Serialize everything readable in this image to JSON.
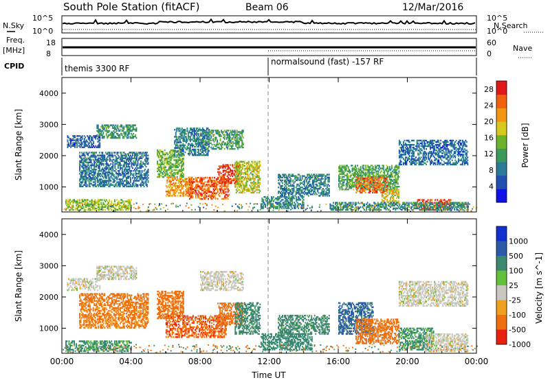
{
  "header": {
    "title": "South Pole Station (fitACF)",
    "beam": "Beam 06",
    "date": "12/Mar/2016"
  },
  "top_panels": {
    "nsky_label": "N.Sky",
    "nsearch_label": "N.Search",
    "noise_ticks": [
      "10^5",
      "10^0"
    ],
    "freq_label_1": "Freq.",
    "freq_label_2": "[MHz]",
    "freq_ticks": [
      "18",
      "8"
    ],
    "nave_label": "Nave",
    "nave_ticks": [
      "60",
      "0"
    ],
    "cpid_label": "CPID",
    "cpid_segments": [
      "themis 3300 RF",
      "normalsound (fast) -157 RF"
    ]
  },
  "colors": {
    "power_scale": [
      "#1010e8",
      "#2050b0",
      "#2a7a9a",
      "#3a9a5a",
      "#6cb22a",
      "#d6c81e",
      "#f49414",
      "#f06010",
      "#e01818"
    ],
    "velocity_scale": [
      "#1030d0",
      "#2a5aa8",
      "#3a8870",
      "#62c03a",
      "#c8c8c0",
      "#f0a020",
      "#f07010",
      "#e82010"
    ],
    "dash": "#888888"
  },
  "chart_data": [
    {
      "type": "heatmap",
      "parameter": "power",
      "ylabel": "Slant Range [km]",
      "xlabel": "Time UT",
      "x_ticks": [
        "00:00",
        "04:00",
        "08:00",
        "12:00",
        "16:00",
        "20:00",
        "00:00"
      ],
      "xlim_hours": [
        0,
        24
      ],
      "ylim": [
        200,
        4500
      ],
      "y_ticks": [
        1000,
        2000,
        3000,
        4000
      ],
      "colorbar": {
        "label": "Power [dB]",
        "ticks": [
          4,
          8,
          12,
          16,
          20,
          24,
          28
        ],
        "range": [
          0,
          30
        ]
      },
      "regions": [
        {
          "t": [
            0.3,
            2.2
          ],
          "r": [
            2250,
            2650
          ],
          "v": 6
        },
        {
          "t": [
            2.0,
            4.3
          ],
          "r": [
            2550,
            3000
          ],
          "v": 11
        },
        {
          "t": [
            0.2,
            4.0
          ],
          "r": [
            250,
            600
          ],
          "v": 16
        },
        {
          "t": [
            1.0,
            5.0
          ],
          "r": [
            1000,
            2100
          ],
          "v": 8
        },
        {
          "t": [
            5.5,
            7.0
          ],
          "r": [
            1300,
            2200
          ],
          "v": 14
        },
        {
          "t": [
            6.0,
            7.5
          ],
          "r": [
            700,
            1300
          ],
          "v": 22
        },
        {
          "t": [
            7.3,
            9.7
          ],
          "r": [
            600,
            1300
          ],
          "v": 25
        },
        {
          "t": [
            9.0,
            10.3
          ],
          "r": [
            1100,
            1700
          ],
          "v": 27
        },
        {
          "t": [
            10.0,
            11.5
          ],
          "r": [
            800,
            1800
          ],
          "v": 17
        },
        {
          "t": [
            8.0,
            10.5
          ],
          "r": [
            2200,
            2800
          ],
          "v": 12
        },
        {
          "t": [
            6.5,
            8.5
          ],
          "r": [
            2000,
            2900
          ],
          "v": 9
        },
        {
          "t": [
            11.5,
            14.0
          ],
          "r": [
            300,
            700
          ],
          "v": 10
        },
        {
          "t": [
            12.5,
            15.5
          ],
          "r": [
            700,
            1400
          ],
          "v": 9
        },
        {
          "t": [
            16.0,
            19.5
          ],
          "r": [
            900,
            1700
          ],
          "v": 13
        },
        {
          "t": [
            17.0,
            18.8
          ],
          "r": [
            800,
            1300
          ],
          "v": 24
        },
        {
          "t": [
            18.5,
            19.5
          ],
          "r": [
            400,
            900
          ],
          "v": 19
        },
        {
          "t": [
            20.5,
            22.5
          ],
          "r": [
            250,
            600
          ],
          "v": 27
        },
        {
          "t": [
            19.5,
            23.5
          ],
          "r": [
            1700,
            2500
          ],
          "v": 7
        },
        {
          "t": [
            15.5,
            23.5
          ],
          "r": [
            250,
            500
          ],
          "v": 10
        }
      ]
    },
    {
      "type": "heatmap",
      "parameter": "velocity",
      "ylabel": "Slant Range [km]",
      "xlabel": "Time UT",
      "x_ticks": [
        "00:00",
        "04:00",
        "08:00",
        "12:00",
        "16:00",
        "20:00",
        "00:00"
      ],
      "xlim_hours": [
        0,
        24
      ],
      "ylim": [
        200,
        4500
      ],
      "y_ticks": [
        1000,
        2000,
        3000,
        4000
      ],
      "colorbar": {
        "label": "Velocity [m s^-1]",
        "ticks": [
          1000,
          500,
          100,
          25,
          -25,
          -100,
          -500,
          -1000
        ]
      },
      "regions": [
        {
          "t": [
            0.3,
            2.2
          ],
          "r": [
            2200,
            2600
          ],
          "v": 0
        },
        {
          "t": [
            2.0,
            4.3
          ],
          "r": [
            2550,
            3000
          ],
          "v": 0
        },
        {
          "t": [
            0.2,
            4.0
          ],
          "r": [
            250,
            600
          ],
          "v": 150
        },
        {
          "t": [
            1.0,
            5.0
          ],
          "r": [
            1000,
            2100
          ],
          "v": -150
        },
        {
          "t": [
            5.5,
            7.0
          ],
          "r": [
            1300,
            2200
          ],
          "v": -300
        },
        {
          "t": [
            6.0,
            9.5
          ],
          "r": [
            700,
            1400
          ],
          "v": -400
        },
        {
          "t": [
            9.0,
            10.5
          ],
          "r": [
            1100,
            1800
          ],
          "v": -300
        },
        {
          "t": [
            10.0,
            11.5
          ],
          "r": [
            800,
            1800
          ],
          "v": 200
        },
        {
          "t": [
            8.0,
            10.5
          ],
          "r": [
            2200,
            2800
          ],
          "v": 0
        },
        {
          "t": [
            11.5,
            14.5
          ],
          "r": [
            300,
            800
          ],
          "v": 300
        },
        {
          "t": [
            12.5,
            15.5
          ],
          "r": [
            800,
            1400
          ],
          "v": 200
        },
        {
          "t": [
            16.0,
            18.0
          ],
          "r": [
            800,
            1800
          ],
          "v": 600
        },
        {
          "t": [
            17.0,
            19.5
          ],
          "r": [
            500,
            1300
          ],
          "v": -200
        },
        {
          "t": [
            19.5,
            21.5
          ],
          "r": [
            300,
            1000
          ],
          "v": 150
        },
        {
          "t": [
            21.0,
            23.5
          ],
          "r": [
            250,
            800
          ],
          "v": 0
        },
        {
          "t": [
            19.5,
            23.5
          ],
          "r": [
            1700,
            2500
          ],
          "v": 0
        }
      ]
    }
  ]
}
